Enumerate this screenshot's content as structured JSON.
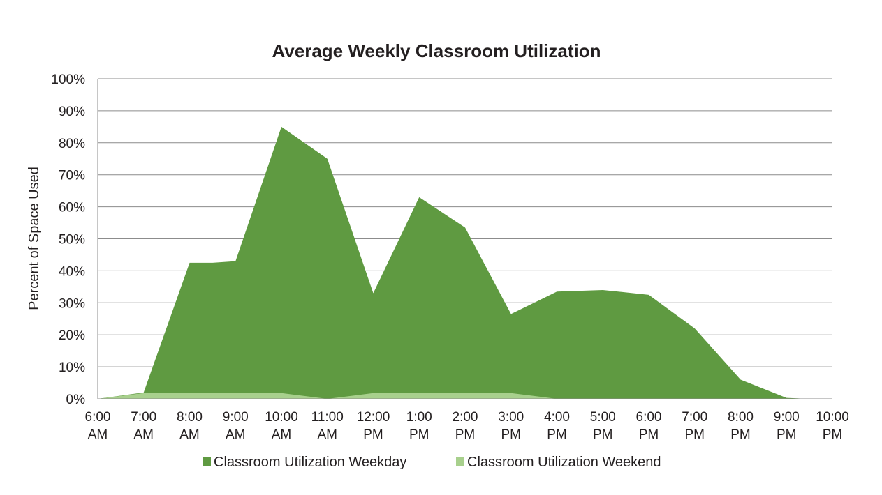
{
  "chart_data": {
    "type": "area",
    "title": "Average Weekly Classroom Utilization",
    "xlabel": "",
    "ylabel": "Percent of Space Used",
    "ylim": [
      0,
      100
    ],
    "yticks": [
      "0%",
      "10%",
      "20%",
      "30%",
      "40%",
      "50%",
      "60%",
      "70%",
      "80%",
      "90%",
      "100%"
    ],
    "categories": [
      [
        "6:00",
        "AM"
      ],
      [
        "7:00",
        "AM"
      ],
      [
        "8:00",
        "AM"
      ],
      [
        "9:00",
        "AM"
      ],
      [
        "10:00",
        "AM"
      ],
      [
        "11:00",
        "AM"
      ],
      [
        "12:00",
        "PM"
      ],
      [
        "1:00",
        "PM"
      ],
      [
        "2:00",
        "PM"
      ],
      [
        "3:00",
        "PM"
      ],
      [
        "4:00",
        "PM"
      ],
      [
        "5:00",
        "PM"
      ],
      [
        "6:00",
        "PM"
      ],
      [
        "7:00",
        "PM"
      ],
      [
        "8:00",
        "PM"
      ],
      [
        "9:00",
        "PM"
      ],
      [
        "10:00",
        "PM"
      ]
    ],
    "series": [
      {
        "name": "Classroom Utilization Weekday",
        "color": "#5f9a41",
        "x": [
          6.0,
          7.0,
          8.0,
          8.5,
          9.0,
          10.0,
          11.0,
          12.0,
          13.0,
          14.0,
          15.0,
          16.0,
          17.0,
          18.0,
          19.0,
          20.0,
          21.0,
          21.5
        ],
        "values": [
          0,
          2,
          42.5,
          42.5,
          43,
          85,
          75,
          33,
          63,
          53.5,
          26.5,
          33.5,
          34,
          32.5,
          22,
          6,
          0.3,
          0
        ]
      },
      {
        "name": "Classroom Utilization Weekend",
        "color": "#a8d08d",
        "x": [
          6.0,
          7.0,
          8.0,
          9.0,
          10.0,
          11.0,
          12.0,
          13.0,
          14.0,
          15.0,
          16.0,
          17.0,
          18.0,
          19.0,
          20.0,
          21.0
        ],
        "values": [
          0,
          1.8,
          1.8,
          1.8,
          1.8,
          0,
          1.8,
          1.8,
          1.8,
          1.8,
          0,
          0,
          0,
          0,
          0,
          0
        ]
      }
    ],
    "legend_position": "bottom",
    "grid": true
  }
}
